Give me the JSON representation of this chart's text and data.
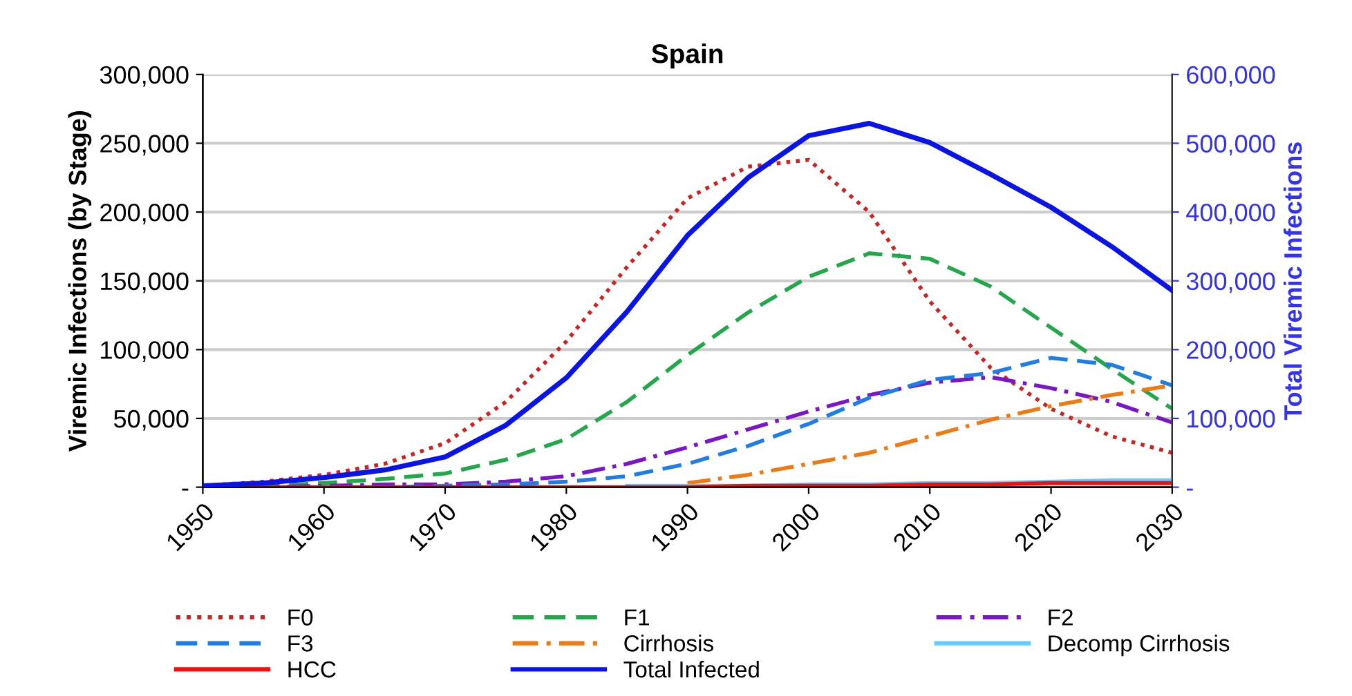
{
  "chart_data": {
    "type": "line",
    "title": "Spain",
    "ylabel": "Viremic Infections (by Stage)",
    "y2label": "Total Viremic Infections",
    "x": [
      1950,
      1955,
      1960,
      1965,
      1970,
      1975,
      1980,
      1985,
      1990,
      1995,
      2000,
      2005,
      2010,
      2015,
      2020,
      2025,
      2030
    ],
    "series": [
      {
        "name": "F0",
        "color": "#cc2222",
        "line_style": "dotted",
        "values": [
          1000,
          4000,
          9000,
          17000,
          32000,
          62000,
          106000,
          160000,
          210000,
          233000,
          238000,
          200000,
          135000,
          87000,
          57000,
          37000,
          25000
        ]
      },
      {
        "name": "F1",
        "color": "#22a84a",
        "line_style": "dashed",
        "values": [
          0,
          1000,
          3000,
          6000,
          10000,
          20000,
          35000,
          62000,
          96000,
          127000,
          153000,
          170000,
          166000,
          146000,
          116000,
          86000,
          57000
        ]
      },
      {
        "name": "F2",
        "color": "#7b16c8",
        "line_style": "dashdot",
        "values": [
          0,
          0,
          1000,
          2000,
          2000,
          4000,
          8000,
          17000,
          29000,
          42000,
          55000,
          67000,
          76000,
          80000,
          72000,
          62000,
          47000
        ]
      },
      {
        "name": "F3",
        "color": "#1e7de6",
        "line_style": "dashed",
        "values": [
          0,
          0,
          0,
          0,
          1000,
          2000,
          4000,
          8000,
          17000,
          30000,
          46000,
          65000,
          78000,
          83000,
          94000,
          89000,
          74000
        ]
      },
      {
        "name": "Cirrhosis",
        "color": "#ee7a14",
        "line_style": "dashdot",
        "values": [
          null,
          null,
          null,
          null,
          null,
          null,
          null,
          null,
          3000,
          9000,
          17000,
          25000,
          37000,
          49000,
          59000,
          67000,
          74000
        ]
      },
      {
        "name": "Decomp Cirrhosis",
        "color": "#66ccff",
        "line_style": "solid",
        "values": [
          null,
          null,
          null,
          null,
          null,
          null,
          null,
          1000,
          1000,
          1000,
          2000,
          2000,
          3000,
          3000,
          4000,
          5000,
          5000
        ]
      },
      {
        "name": "HCC",
        "color": "#ee1111",
        "line_style": "solid",
        "values": [
          0,
          0,
          0,
          0,
          0,
          0,
          0,
          0,
          0,
          1000,
          1000,
          1000,
          2000,
          2000,
          3000,
          3000,
          3000
        ]
      },
      {
        "name": "Total Infected",
        "color": "#0a14e6",
        "line_style": "solid",
        "axis": "y2",
        "values": [
          2000,
          6000,
          14000,
          25000,
          44000,
          90000,
          159000,
          255000,
          366000,
          450000,
          511000,
          529000,
          501000,
          455000,
          407000,
          350000,
          286000
        ]
      }
    ],
    "xlim": [
      1950,
      2030
    ],
    "xticks": [
      1950,
      1960,
      1970,
      1980,
      1990,
      2000,
      2010,
      2020,
      2030
    ],
    "ylim": [
      0,
      300000
    ],
    "yticks": [
      {
        "value": 0,
        "label": "-"
      },
      {
        "value": 50000,
        "label": "50,000"
      },
      {
        "value": 100000,
        "label": "100,000"
      },
      {
        "value": 150000,
        "label": "150,000"
      },
      {
        "value": 200000,
        "label": "200,000"
      },
      {
        "value": 250000,
        "label": "250,000"
      },
      {
        "value": 300000,
        "label": "300,000"
      }
    ],
    "y2lim": [
      0,
      600000
    ],
    "y2ticks": [
      {
        "value": 0,
        "label": "-"
      },
      {
        "value": 100000,
        "label": "100,000"
      },
      {
        "value": 200000,
        "label": "200,000"
      },
      {
        "value": 300000,
        "label": "300,000"
      },
      {
        "value": 400000,
        "label": "400,000"
      },
      {
        "value": 500000,
        "label": "500,000"
      },
      {
        "value": 600000,
        "label": "600,000"
      }
    ],
    "grid": "y",
    "legend": "bottom"
  }
}
